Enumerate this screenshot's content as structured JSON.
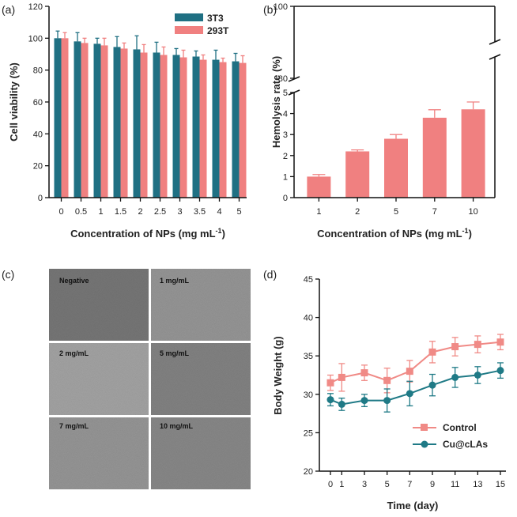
{
  "colors": {
    "teal": "#1f7083",
    "salmon": "#f08080",
    "axis": "#111111",
    "control": "#f08a86",
    "treated": "#1f7a86"
  },
  "panel_labels": [
    "(a)",
    "(b)",
    "(c)",
    "(d)"
  ],
  "chart_data": [
    {
      "id": "a",
      "type": "bar",
      "title": "",
      "xlabel": "Concentration of NPs (mg mL",
      "xlabel_sup": "-1",
      "xlabel_close": ")",
      "ylabel": "Cell viability (%)",
      "ylim": [
        0,
        120
      ],
      "yticks": [
        "0",
        "20",
        "40",
        "60",
        "80",
        "100",
        "120"
      ],
      "categories": [
        "0",
        "0.5",
        "1",
        "1.5",
        "2",
        "2.5",
        "3",
        "3.5",
        "4",
        "5"
      ],
      "series": [
        {
          "name": "3T3",
          "values": [
            100,
            98,
            96.5,
            94.5,
            93,
            91,
            89.5,
            88.5,
            86.5,
            85.5
          ],
          "errors": [
            4.5,
            5.5,
            3.5,
            6.5,
            8.5,
            6.5,
            4,
            3.5,
            6,
            5
          ]
        },
        {
          "name": "293T",
          "values": [
            100,
            97,
            95.5,
            93.5,
            91,
            89.5,
            88,
            86.5,
            85,
            84.5
          ],
          "errors": [
            3.5,
            3,
            4.5,
            3.5,
            5,
            5,
            4.5,
            3,
            2.5,
            4.5
          ]
        }
      ]
    },
    {
      "id": "b",
      "type": "bar",
      "title": "",
      "xlabel": "Concentration of NPs (mg mL",
      "xlabel_sup": "-1",
      "xlabel_close": ")",
      "ylabel": "Hemolysis rate (%)",
      "yticks_lower": [
        "0",
        "1",
        "2",
        "3",
        "4",
        "5"
      ],
      "yticks_upper": [
        "80",
        "100"
      ],
      "ylim_lower": [
        0,
        5
      ],
      "ylim_upper": [
        80,
        100
      ],
      "categories": [
        "1",
        "2",
        "5",
        "7",
        "10"
      ],
      "values": [
        1.0,
        2.2,
        2.8,
        3.8,
        4.2
      ],
      "errors": [
        0.1,
        0.07,
        0.2,
        0.38,
        0.35
      ]
    },
    {
      "id": "d",
      "type": "line",
      "title": "",
      "xlabel": "Time (day)",
      "ylabel": "Body Weight (g)",
      "ylim": [
        20,
        45
      ],
      "yticks": [
        "20",
        "25",
        "30",
        "35",
        "40",
        "45"
      ],
      "x": [
        "0",
        "1",
        "3",
        "5",
        "7",
        "9",
        "11",
        "13",
        "15"
      ],
      "series": [
        {
          "name": "Control",
          "values": [
            31.5,
            32.2,
            32.8,
            31.8,
            33,
            35.5,
            36.2,
            36.5,
            36.8
          ],
          "errors": [
            1,
            1.8,
            1,
            1.6,
            1.4,
            1.4,
            1.2,
            1.1,
            1
          ]
        },
        {
          "name": "Cu@cLAs",
          "values": [
            29.3,
            28.7,
            29.2,
            29.2,
            30.1,
            31.2,
            32.2,
            32.5,
            33.1
          ],
          "errors": [
            0.8,
            0.8,
            0.8,
            1.5,
            1.6,
            1.4,
            1.3,
            1.1,
            1
          ]
        }
      ]
    }
  ],
  "micrographs": {
    "labels": [
      "Negative",
      "1 mg/mL",
      "2 mg/mL",
      "5 mg/mL",
      "7 mg/mL",
      "10 mg/mL"
    ],
    "tones": [
      "#7a7a7a",
      "#9a9a9a",
      "#a8a8a8",
      "#868686",
      "#9a9a9a",
      "#8c8c8c"
    ]
  }
}
